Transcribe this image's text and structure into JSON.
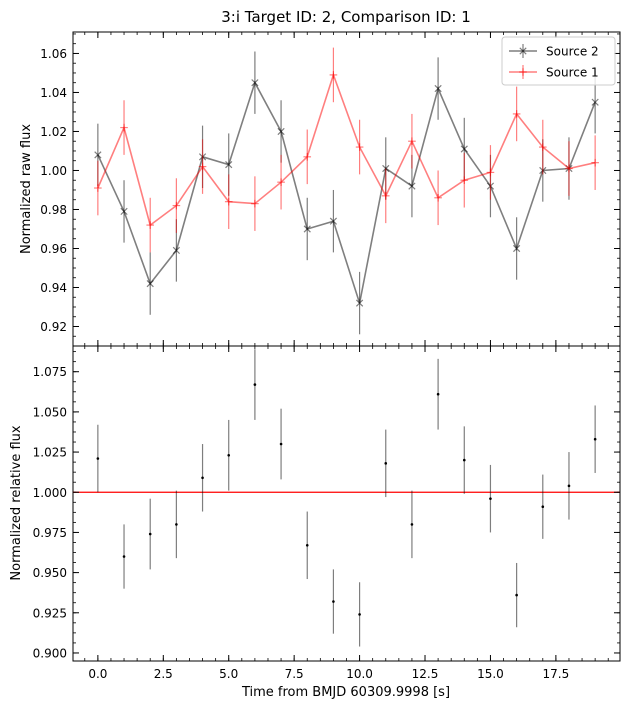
{
  "chart_data": [
    {
      "type": "line",
      "title": "3:i Target ID: 2, Comparison ID: 1",
      "xlabel": "",
      "ylabel": "Normalized raw flux",
      "xlim": [
        -0.95,
        19.95
      ],
      "ylim": [
        0.91,
        1.071
      ],
      "yticks": [
        0.92,
        0.94,
        0.96,
        0.98,
        1.0,
        1.02,
        1.04,
        1.06
      ],
      "ytick_labels": [
        "0.92",
        "0.94",
        "0.96",
        "0.98",
        "1.00",
        "1.02",
        "1.04",
        "1.06"
      ],
      "legend_position": "top-right",
      "x": [
        0,
        1,
        2,
        3,
        4,
        5,
        6,
        7,
        8,
        9,
        10,
        11,
        12,
        13,
        14,
        15,
        16,
        17,
        18,
        19
      ],
      "series": [
        {
          "name": "Source 2",
          "color": "#000000",
          "marker": "x",
          "values": [
            1.008,
            0.979,
            0.942,
            0.959,
            1.007,
            1.003,
            1.045,
            1.02,
            0.97,
            0.974,
            0.932,
            1.001,
            0.992,
            1.042,
            1.011,
            0.992,
            0.96,
            1.0,
            1.001,
            1.035
          ],
          "errors": [
            0.016,
            0.016,
            0.016,
            0.016,
            0.016,
            0.016,
            0.016,
            0.016,
            0.016,
            0.016,
            0.016,
            0.016,
            0.016,
            0.016,
            0.016,
            0.016,
            0.016,
            0.016,
            0.016,
            0.016
          ]
        },
        {
          "name": "Source 1",
          "color": "#ff0000",
          "marker": "+",
          "values": [
            0.991,
            1.022,
            0.972,
            0.982,
            1.002,
            0.984,
            0.983,
            0.994,
            1.007,
            1.049,
            1.012,
            0.987,
            1.015,
            0.986,
            0.995,
            0.999,
            1.029,
            1.012,
            1.001,
            1.004
          ],
          "errors": [
            0.014,
            0.014,
            0.014,
            0.014,
            0.014,
            0.014,
            0.014,
            0.014,
            0.014,
            0.014,
            0.014,
            0.014,
            0.014,
            0.014,
            0.014,
            0.014,
            0.014,
            0.014,
            0.014,
            0.014
          ]
        }
      ]
    },
    {
      "type": "scatter",
      "title": "",
      "xlabel": "Time from BMJD 60309.9998 [s]",
      "ylabel": "Normalized relative flux",
      "xlim": [
        -0.95,
        19.95
      ],
      "ylim": [
        0.895,
        1.091
      ],
      "xticks": [
        0,
        2.5,
        5,
        7.5,
        10,
        12.5,
        15,
        17.5
      ],
      "xtick_labels": [
        "0.0",
        "2.5",
        "5.0",
        "7.5",
        "10.0",
        "12.5",
        "15.0",
        "17.5"
      ],
      "yticks": [
        0.9,
        0.925,
        0.95,
        0.975,
        1.0,
        1.025,
        1.05,
        1.075
      ],
      "ytick_labels": [
        "0.900",
        "0.925",
        "0.950",
        "0.975",
        "1.000",
        "1.025",
        "1.050",
        "1.075"
      ],
      "reference_line": {
        "y": 1.0,
        "color": "#ff0000"
      },
      "x": [
        0,
        1,
        2,
        3,
        4,
        5,
        6,
        7,
        8,
        9,
        10,
        11,
        12,
        13,
        14,
        15,
        16,
        17,
        18,
        19
      ],
      "values": [
        1.021,
        0.96,
        0.974,
        0.98,
        1.009,
        1.023,
        1.067,
        1.03,
        0.967,
        0.932,
        0.924,
        1.018,
        0.98,
        1.061,
        1.02,
        0.996,
        0.936,
        0.991,
        1.004,
        1.033
      ],
      "errors": [
        0.021,
        0.02,
        0.022,
        0.021,
        0.021,
        0.022,
        0.022,
        0.022,
        0.021,
        0.02,
        0.02,
        0.021,
        0.021,
        0.022,
        0.021,
        0.021,
        0.02,
        0.02,
        0.021,
        0.021
      ]
    }
  ]
}
